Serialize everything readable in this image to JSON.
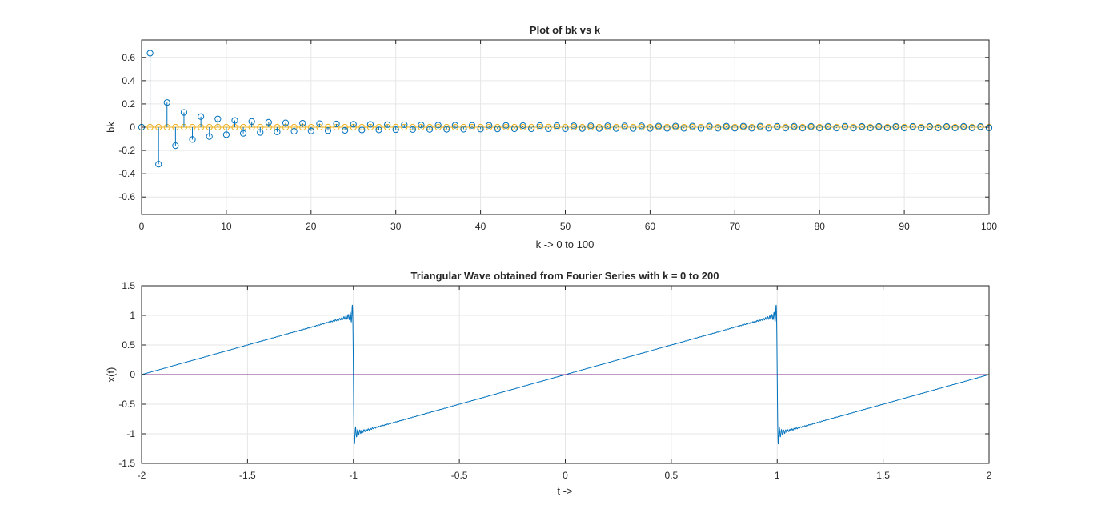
{
  "chart_data": [
    {
      "type": "stem",
      "title": "Plot of bk vs k",
      "xlabel": "k -> 0 to 100",
      "ylabel": "bk",
      "xlim": [
        0,
        100
      ],
      "ylim": [
        -0.75,
        0.75
      ],
      "xticks": [
        "0",
        "10",
        "20",
        "30",
        "40",
        "50",
        "60",
        "70",
        "80",
        "90",
        "100"
      ],
      "yticks": [
        "-0.6",
        "-0.4",
        "-0.2",
        "0",
        "0.2",
        "0.4",
        "0.6"
      ],
      "grid": true,
      "series": [
        {
          "kind": "stem",
          "color": "#0072BD",
          "x_start": 0,
          "x_end": 100,
          "values": [
            0.0,
            0.637,
            -0.318,
            0.212,
            -0.159,
            0.127,
            -0.106,
            0.091,
            -0.08,
            0.071,
            -0.064,
            0.058,
            -0.053,
            0.049,
            -0.045,
            0.042,
            -0.04,
            0.037,
            -0.035,
            0.034,
            -0.032,
            0.03,
            -0.029,
            0.028,
            -0.027,
            0.025,
            -0.024,
            0.024,
            -0.023,
            0.022,
            -0.021,
            0.021,
            -0.02,
            0.019,
            -0.019,
            0.018,
            -0.018,
            0.017,
            -0.017,
            0.016,
            -0.016,
            0.016,
            -0.015,
            0.015,
            -0.014,
            0.014,
            -0.014,
            0.014,
            -0.013,
            0.013,
            -0.013,
            0.012,
            -0.012,
            0.012,
            -0.012,
            0.012,
            -0.011,
            0.011,
            -0.011,
            0.011,
            -0.011,
            0.01,
            -0.01,
            0.01,
            -0.01,
            0.01,
            -0.01,
            0.01,
            -0.009,
            0.009,
            -0.009,
            0.009,
            -0.009,
            0.009,
            -0.009,
            0.008,
            -0.008,
            0.008,
            -0.008,
            0.008,
            -0.008,
            0.008,
            -0.008,
            0.008,
            -0.008,
            0.007,
            -0.007,
            0.007,
            -0.007,
            0.007,
            -0.007,
            0.007,
            -0.007,
            0.007,
            -0.007,
            0.007,
            -0.007,
            0.007,
            -0.006,
            0.006,
            -0.006
          ]
        },
        {
          "kind": "stem",
          "color": "#EDB120",
          "x_start": 0,
          "x_end": 100,
          "constant": 0
        }
      ]
    },
    {
      "type": "line",
      "title": "Triangular Wave obtained from Fourier Series with k = 0 to 200",
      "xlabel": "t ->",
      "ylabel": "x(t)",
      "xlim": [
        -2,
        2
      ],
      "ylim": [
        -1.5,
        1.5
      ],
      "xticks": [
        "-2",
        "-1.5",
        "-1",
        "-0.5",
        "0",
        "0.5",
        "1",
        "1.5",
        "2"
      ],
      "yticks": [
        "-1.5",
        "-1",
        "-0.5",
        "0",
        "0.5",
        "1",
        "1.5"
      ],
      "grid": true,
      "series": [
        {
          "kind": "fourier_sum",
          "color": "#0072BD",
          "k_max": 200,
          "period": 2,
          "x_range": [
            -2,
            2
          ]
        },
        {
          "kind": "constant",
          "color": "#7E2F8E",
          "value": 0,
          "x_range": [
            -2,
            2
          ]
        }
      ]
    }
  ]
}
